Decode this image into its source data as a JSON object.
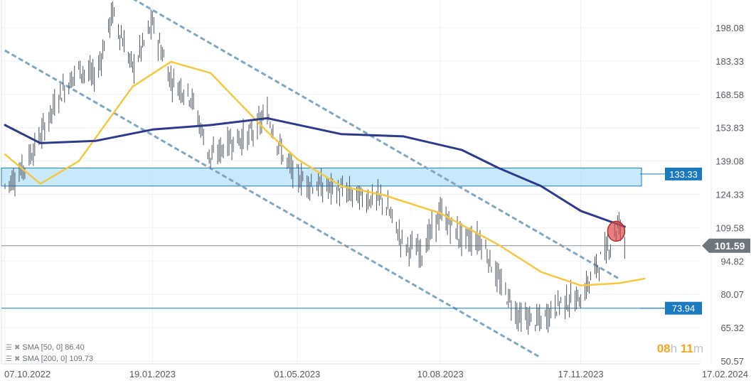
{
  "chart_data": {
    "type": "candlestick",
    "y_axis": {
      "ticks": [
        198.08,
        183.33,
        168.58,
        153.83,
        139.08,
        124.33,
        109.58,
        94.82,
        80.07,
        65.32,
        50.57
      ],
      "range": [
        50.57,
        211
      ]
    },
    "x_axis": {
      "ticks": [
        "07.10.2022",
        "19.01.2023",
        "01.05.2023",
        "10.08.2023",
        "17.11.2023",
        "17.02.2024"
      ]
    },
    "price_series": [
      {
        "date": "2022-10-07",
        "close": 128
      },
      {
        "date": "2022-10-20",
        "close": 136
      },
      {
        "date": "2022-11-01",
        "close": 150
      },
      {
        "date": "2022-11-14",
        "close": 168
      },
      {
        "date": "2022-11-28",
        "close": 180
      },
      {
        "date": "2022-12-10",
        "close": 176
      },
      {
        "date": "2022-12-22",
        "close": 205
      },
      {
        "date": "2023-01-05",
        "close": 180
      },
      {
        "date": "2023-01-19",
        "close": 200
      },
      {
        "date": "2023-02-01",
        "close": 175
      },
      {
        "date": "2023-02-15",
        "close": 168
      },
      {
        "date": "2023-03-01",
        "close": 140
      },
      {
        "date": "2023-03-15",
        "close": 148
      },
      {
        "date": "2023-03-28",
        "close": 150
      },
      {
        "date": "2023-04-10",
        "close": 160
      },
      {
        "date": "2023-04-22",
        "close": 140
      },
      {
        "date": "2023-05-01",
        "close": 132
      },
      {
        "date": "2023-05-15",
        "close": 128
      },
      {
        "date": "2023-05-30",
        "close": 126
      },
      {
        "date": "2023-06-15",
        "close": 123
      },
      {
        "date": "2023-07-01",
        "close": 122
      },
      {
        "date": "2023-07-15",
        "close": 102
      },
      {
        "date": "2023-07-28",
        "close": 99
      },
      {
        "date": "2023-08-10",
        "close": 116
      },
      {
        "date": "2023-08-25",
        "close": 105
      },
      {
        "date": "2023-09-08",
        "close": 104
      },
      {
        "date": "2023-09-20",
        "close": 86
      },
      {
        "date": "2023-10-05",
        "close": 70
      },
      {
        "date": "2023-10-20",
        "close": 68
      },
      {
        "date": "2023-11-03",
        "close": 77
      },
      {
        "date": "2023-11-17",
        "close": 78
      },
      {
        "date": "2023-11-28",
        "close": 92
      },
      {
        "date": "2023-12-08",
        "close": 103
      },
      {
        "date": "2023-12-14",
        "close": 112
      },
      {
        "date": "2023-12-18",
        "close": 102
      }
    ],
    "series": [
      {
        "name": "SMA [50, 0]",
        "last_value": "86.40",
        "color": "#f5c842",
        "points": [
          {
            "date": "2022-10-07",
            "value": 142
          },
          {
            "date": "2022-11-01",
            "value": 129
          },
          {
            "date": "2022-11-28",
            "value": 139
          },
          {
            "date": "2023-01-05",
            "value": 172
          },
          {
            "date": "2023-02-01",
            "value": 183
          },
          {
            "date": "2023-03-01",
            "value": 178
          },
          {
            "date": "2023-04-10",
            "value": 152
          },
          {
            "date": "2023-05-01",
            "value": 140
          },
          {
            "date": "2023-06-01",
            "value": 128
          },
          {
            "date": "2023-07-01",
            "value": 124
          },
          {
            "date": "2023-08-10",
            "value": 116
          },
          {
            "date": "2023-09-20",
            "value": 102
          },
          {
            "date": "2023-10-20",
            "value": 90
          },
          {
            "date": "2023-11-17",
            "value": 84
          },
          {
            "date": "2023-12-14",
            "value": 85
          },
          {
            "date": "2024-01-01",
            "value": 87
          }
        ]
      },
      {
        "name": "SMA [200, 0]",
        "last_value": "109.73",
        "color": "#2e3a8c",
        "points": [
          {
            "date": "2022-10-07",
            "value": 155
          },
          {
            "date": "2022-11-01",
            "value": 147
          },
          {
            "date": "2022-12-10",
            "value": 148
          },
          {
            "date": "2023-01-19",
            "value": 153
          },
          {
            "date": "2023-03-01",
            "value": 155
          },
          {
            "date": "2023-04-10",
            "value": 158
          },
          {
            "date": "2023-06-01",
            "value": 151
          },
          {
            "date": "2023-07-15",
            "value": 150
          },
          {
            "date": "2023-08-25",
            "value": 144
          },
          {
            "date": "2023-09-20",
            "value": 136
          },
          {
            "date": "2023-10-20",
            "value": 128
          },
          {
            "date": "2023-11-17",
            "value": 117
          },
          {
            "date": "2023-12-18",
            "value": 110
          }
        ]
      }
    ],
    "channel_lines": [
      {
        "from": {
          "date": "2022-10-07",
          "value": 188
        },
        "to": {
          "date": "2023-10-20",
          "value": 52
        }
      },
      {
        "from": {
          "date": "2023-01-05",
          "value": 211
        },
        "to": {
          "date": "2023-12-14",
          "value": 87
        }
      }
    ],
    "zone": {
      "label": "133.33",
      "low": 128,
      "high": 136
    },
    "levels": [
      {
        "label": "133.33",
        "value": 133.33,
        "color": "#1b79c0"
      },
      {
        "label": "73.94",
        "value": 73.94,
        "color": "#1b79c0"
      },
      {
        "label": "101.59",
        "value": 101.59,
        "color": "#6e757c"
      }
    ],
    "marker": {
      "date": "2023-12-12",
      "value": 108
    },
    "countdown": {
      "hours": "08",
      "hours_unit": "h",
      "minutes": "11",
      "minutes_unit": "m"
    }
  },
  "legend": [
    {
      "label": "SMA [50, 0]",
      "value": "86.40"
    },
    {
      "label": "SMA [200, 0]",
      "value": "109.73"
    }
  ],
  "colors": {
    "price": "#4e5660",
    "sma50": "#f5c842",
    "sma200": "#2e3a8c",
    "channel": "#7fa6c2",
    "level": "#1b79c0",
    "zone": "#b5e0fb",
    "marker": "#d94a4a",
    "timer_accent": "#f5a623"
  }
}
